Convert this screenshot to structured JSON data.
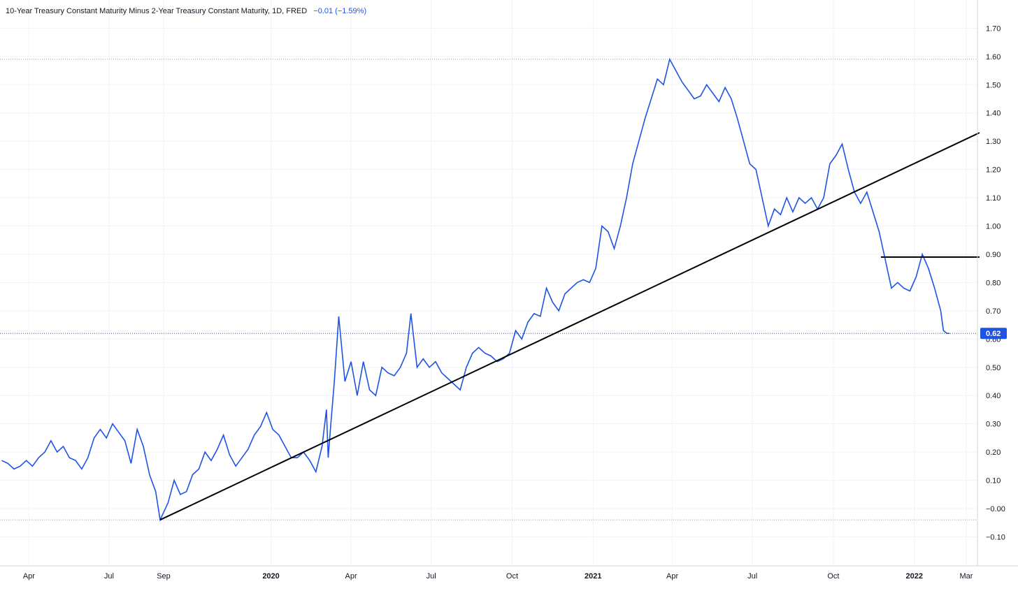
{
  "header": {
    "title": "10-Year Treasury Constant Maturity Minus 2-Year Treasury Constant Maturity, 1D, FRED",
    "change": "−0.01 (−1.59%)"
  },
  "colors": {
    "series": "#1e53e5",
    "trendline": "#000000",
    "grid": "#f0f3fa",
    "axis_text": "#131722",
    "last_price_bg": "#1e53e5"
  },
  "chart_data": {
    "type": "line",
    "title": "10-Year Treasury Constant Maturity Minus 2-Year Treasury Constant Maturity, 1D, FRED",
    "ylim": [
      -0.2,
      1.75
    ],
    "y_ticks": [
      "1.70",
      "1.60",
      "1.50",
      "1.40",
      "1.30",
      "1.20",
      "1.10",
      "1.00",
      "0.90",
      "0.80",
      "0.70",
      "0.60",
      "0.50",
      "0.40",
      "0.30",
      "0.20",
      "0.10",
      "−0.00",
      "−0.10"
    ],
    "x_ticks": [
      {
        "label": "Apr",
        "date": "2019-04-01",
        "bold": false
      },
      {
        "label": "Jul",
        "date": "2019-07-01",
        "bold": false
      },
      {
        "label": "Sep",
        "date": "2019-09-01",
        "bold": false
      },
      {
        "label": "2020",
        "date": "2020-01-01",
        "bold": true
      },
      {
        "label": "Apr",
        "date": "2020-04-01",
        "bold": false
      },
      {
        "label": "Jul",
        "date": "2020-07-01",
        "bold": false
      },
      {
        "label": "Oct",
        "date": "2020-10-01",
        "bold": false
      },
      {
        "label": "2021",
        "date": "2021-01-01",
        "bold": true
      },
      {
        "label": "Apr",
        "date": "2021-04-01",
        "bold": false
      },
      {
        "label": "Jul",
        "date": "2021-07-01",
        "bold": false
      },
      {
        "label": "Oct",
        "date": "2021-10-01",
        "bold": false
      },
      {
        "label": "2022",
        "date": "2022-01-01",
        "bold": true
      },
      {
        "label": "Mar",
        "date": "2022-03-01",
        "bold": false
      }
    ],
    "series": [
      {
        "points": [
          [
            "2019-03-01",
            0.17
          ],
          [
            "2019-03-08",
            0.16
          ],
          [
            "2019-03-15",
            0.14
          ],
          [
            "2019-03-22",
            0.15
          ],
          [
            "2019-03-29",
            0.17
          ],
          [
            "2019-04-05",
            0.15
          ],
          [
            "2019-04-12",
            0.18
          ],
          [
            "2019-04-19",
            0.2
          ],
          [
            "2019-04-26",
            0.24
          ],
          [
            "2019-05-03",
            0.2
          ],
          [
            "2019-05-10",
            0.22
          ],
          [
            "2019-05-17",
            0.18
          ],
          [
            "2019-05-24",
            0.17
          ],
          [
            "2019-05-31",
            0.14
          ],
          [
            "2019-06-07",
            0.18
          ],
          [
            "2019-06-14",
            0.25
          ],
          [
            "2019-06-21",
            0.28
          ],
          [
            "2019-06-28",
            0.25
          ],
          [
            "2019-07-05",
            0.3
          ],
          [
            "2019-07-12",
            0.27
          ],
          [
            "2019-07-19",
            0.24
          ],
          [
            "2019-07-26",
            0.16
          ],
          [
            "2019-08-02",
            0.28
          ],
          [
            "2019-08-09",
            0.22
          ],
          [
            "2019-08-16",
            0.12
          ],
          [
            "2019-08-23",
            0.06
          ],
          [
            "2019-08-28",
            -0.04
          ],
          [
            "2019-09-06",
            0.02
          ],
          [
            "2019-09-13",
            0.1
          ],
          [
            "2019-09-20",
            0.05
          ],
          [
            "2019-09-27",
            0.06
          ],
          [
            "2019-10-04",
            0.12
          ],
          [
            "2019-10-11",
            0.14
          ],
          [
            "2019-10-18",
            0.2
          ],
          [
            "2019-10-25",
            0.17
          ],
          [
            "2019-11-01",
            0.21
          ],
          [
            "2019-11-08",
            0.26
          ],
          [
            "2019-11-15",
            0.19
          ],
          [
            "2019-11-22",
            0.15
          ],
          [
            "2019-11-29",
            0.18
          ],
          [
            "2019-12-06",
            0.21
          ],
          [
            "2019-12-13",
            0.26
          ],
          [
            "2019-12-20",
            0.29
          ],
          [
            "2019-12-27",
            0.34
          ],
          [
            "2020-01-03",
            0.28
          ],
          [
            "2020-01-10",
            0.26
          ],
          [
            "2020-01-17",
            0.22
          ],
          [
            "2020-01-24",
            0.18
          ],
          [
            "2020-01-31",
            0.18
          ],
          [
            "2020-02-07",
            0.2
          ],
          [
            "2020-02-14",
            0.17
          ],
          [
            "2020-02-21",
            0.13
          ],
          [
            "2020-02-28",
            0.22
          ],
          [
            "2020-03-04",
            0.35
          ],
          [
            "2020-03-06",
            0.18
          ],
          [
            "2020-03-09",
            0.3
          ],
          [
            "2020-03-13",
            0.45
          ],
          [
            "2020-03-18",
            0.68
          ],
          [
            "2020-03-25",
            0.45
          ],
          [
            "2020-04-01",
            0.52
          ],
          [
            "2020-04-08",
            0.4
          ],
          [
            "2020-04-15",
            0.52
          ],
          [
            "2020-04-22",
            0.42
          ],
          [
            "2020-04-29",
            0.4
          ],
          [
            "2020-05-06",
            0.5
          ],
          [
            "2020-05-13",
            0.48
          ],
          [
            "2020-05-20",
            0.47
          ],
          [
            "2020-05-27",
            0.5
          ],
          [
            "2020-06-03",
            0.55
          ],
          [
            "2020-06-08",
            0.69
          ],
          [
            "2020-06-15",
            0.5
          ],
          [
            "2020-06-22",
            0.53
          ],
          [
            "2020-06-29",
            0.5
          ],
          [
            "2020-07-06",
            0.52
          ],
          [
            "2020-07-13",
            0.48
          ],
          [
            "2020-07-20",
            0.46
          ],
          [
            "2020-07-27",
            0.44
          ],
          [
            "2020-08-03",
            0.42
          ],
          [
            "2020-08-10",
            0.5
          ],
          [
            "2020-08-17",
            0.55
          ],
          [
            "2020-08-24",
            0.57
          ],
          [
            "2020-08-31",
            0.55
          ],
          [
            "2020-09-07",
            0.54
          ],
          [
            "2020-09-14",
            0.52
          ],
          [
            "2020-09-21",
            0.53
          ],
          [
            "2020-09-28",
            0.55
          ],
          [
            "2020-10-05",
            0.63
          ],
          [
            "2020-10-12",
            0.6
          ],
          [
            "2020-10-19",
            0.66
          ],
          [
            "2020-10-26",
            0.69
          ],
          [
            "2020-11-02",
            0.68
          ],
          [
            "2020-11-09",
            0.78
          ],
          [
            "2020-11-16",
            0.73
          ],
          [
            "2020-11-23",
            0.7
          ],
          [
            "2020-11-30",
            0.76
          ],
          [
            "2020-12-07",
            0.78
          ],
          [
            "2020-12-14",
            0.8
          ],
          [
            "2020-12-21",
            0.81
          ],
          [
            "2020-12-28",
            0.8
          ],
          [
            "2021-01-04",
            0.85
          ],
          [
            "2021-01-11",
            1.0
          ],
          [
            "2021-01-18",
            0.98
          ],
          [
            "2021-01-25",
            0.92
          ],
          [
            "2021-02-01",
            1.0
          ],
          [
            "2021-02-08",
            1.1
          ],
          [
            "2021-02-15",
            1.22
          ],
          [
            "2021-02-22",
            1.3
          ],
          [
            "2021-03-01",
            1.38
          ],
          [
            "2021-03-08",
            1.45
          ],
          [
            "2021-03-15",
            1.52
          ],
          [
            "2021-03-22",
            1.5
          ],
          [
            "2021-03-29",
            1.59
          ],
          [
            "2021-04-05",
            1.55
          ],
          [
            "2021-04-12",
            1.51
          ],
          [
            "2021-04-19",
            1.48
          ],
          [
            "2021-04-26",
            1.45
          ],
          [
            "2021-05-03",
            1.46
          ],
          [
            "2021-05-10",
            1.5
          ],
          [
            "2021-05-17",
            1.47
          ],
          [
            "2021-05-24",
            1.44
          ],
          [
            "2021-05-31",
            1.49
          ],
          [
            "2021-06-07",
            1.45
          ],
          [
            "2021-06-14",
            1.38
          ],
          [
            "2021-06-21",
            1.3
          ],
          [
            "2021-06-28",
            1.22
          ],
          [
            "2021-07-05",
            1.2
          ],
          [
            "2021-07-12",
            1.1
          ],
          [
            "2021-07-19",
            1.0
          ],
          [
            "2021-07-26",
            1.06
          ],
          [
            "2021-08-02",
            1.04
          ],
          [
            "2021-08-09",
            1.1
          ],
          [
            "2021-08-16",
            1.05
          ],
          [
            "2021-08-23",
            1.1
          ],
          [
            "2021-08-30",
            1.08
          ],
          [
            "2021-09-06",
            1.1
          ],
          [
            "2021-09-13",
            1.06
          ],
          [
            "2021-09-20",
            1.1
          ],
          [
            "2021-09-27",
            1.22
          ],
          [
            "2021-10-04",
            1.25
          ],
          [
            "2021-10-11",
            1.29
          ],
          [
            "2021-10-18",
            1.2
          ],
          [
            "2021-10-25",
            1.12
          ],
          [
            "2021-11-01",
            1.08
          ],
          [
            "2021-11-08",
            1.12
          ],
          [
            "2021-11-15",
            1.05
          ],
          [
            "2021-11-22",
            0.98
          ],
          [
            "2021-11-29",
            0.88
          ],
          [
            "2021-12-06",
            0.78
          ],
          [
            "2021-12-13",
            0.8
          ],
          [
            "2021-12-20",
            0.78
          ],
          [
            "2021-12-27",
            0.77
          ],
          [
            "2022-01-03",
            0.82
          ],
          [
            "2022-01-10",
            0.9
          ],
          [
            "2022-01-17",
            0.85
          ],
          [
            "2022-01-24",
            0.78
          ],
          [
            "2022-01-31",
            0.7
          ],
          [
            "2022-02-03",
            0.63
          ],
          [
            "2022-02-07",
            0.62
          ],
          [
            "2022-02-10",
            0.62
          ]
        ]
      }
    ],
    "last_value": "0.62",
    "reference_lines": [
      1.59,
      -0.04
    ],
    "drawings": [
      {
        "type": "trendline",
        "from": [
          "2019-08-28",
          -0.04
        ],
        "to": [
          "2022-03-16",
          1.33
        ]
      },
      {
        "type": "horizontal",
        "from": [
          "2021-11-24",
          0.89
        ],
        "to": [
          "2022-03-16",
          0.89
        ]
      }
    ]
  }
}
